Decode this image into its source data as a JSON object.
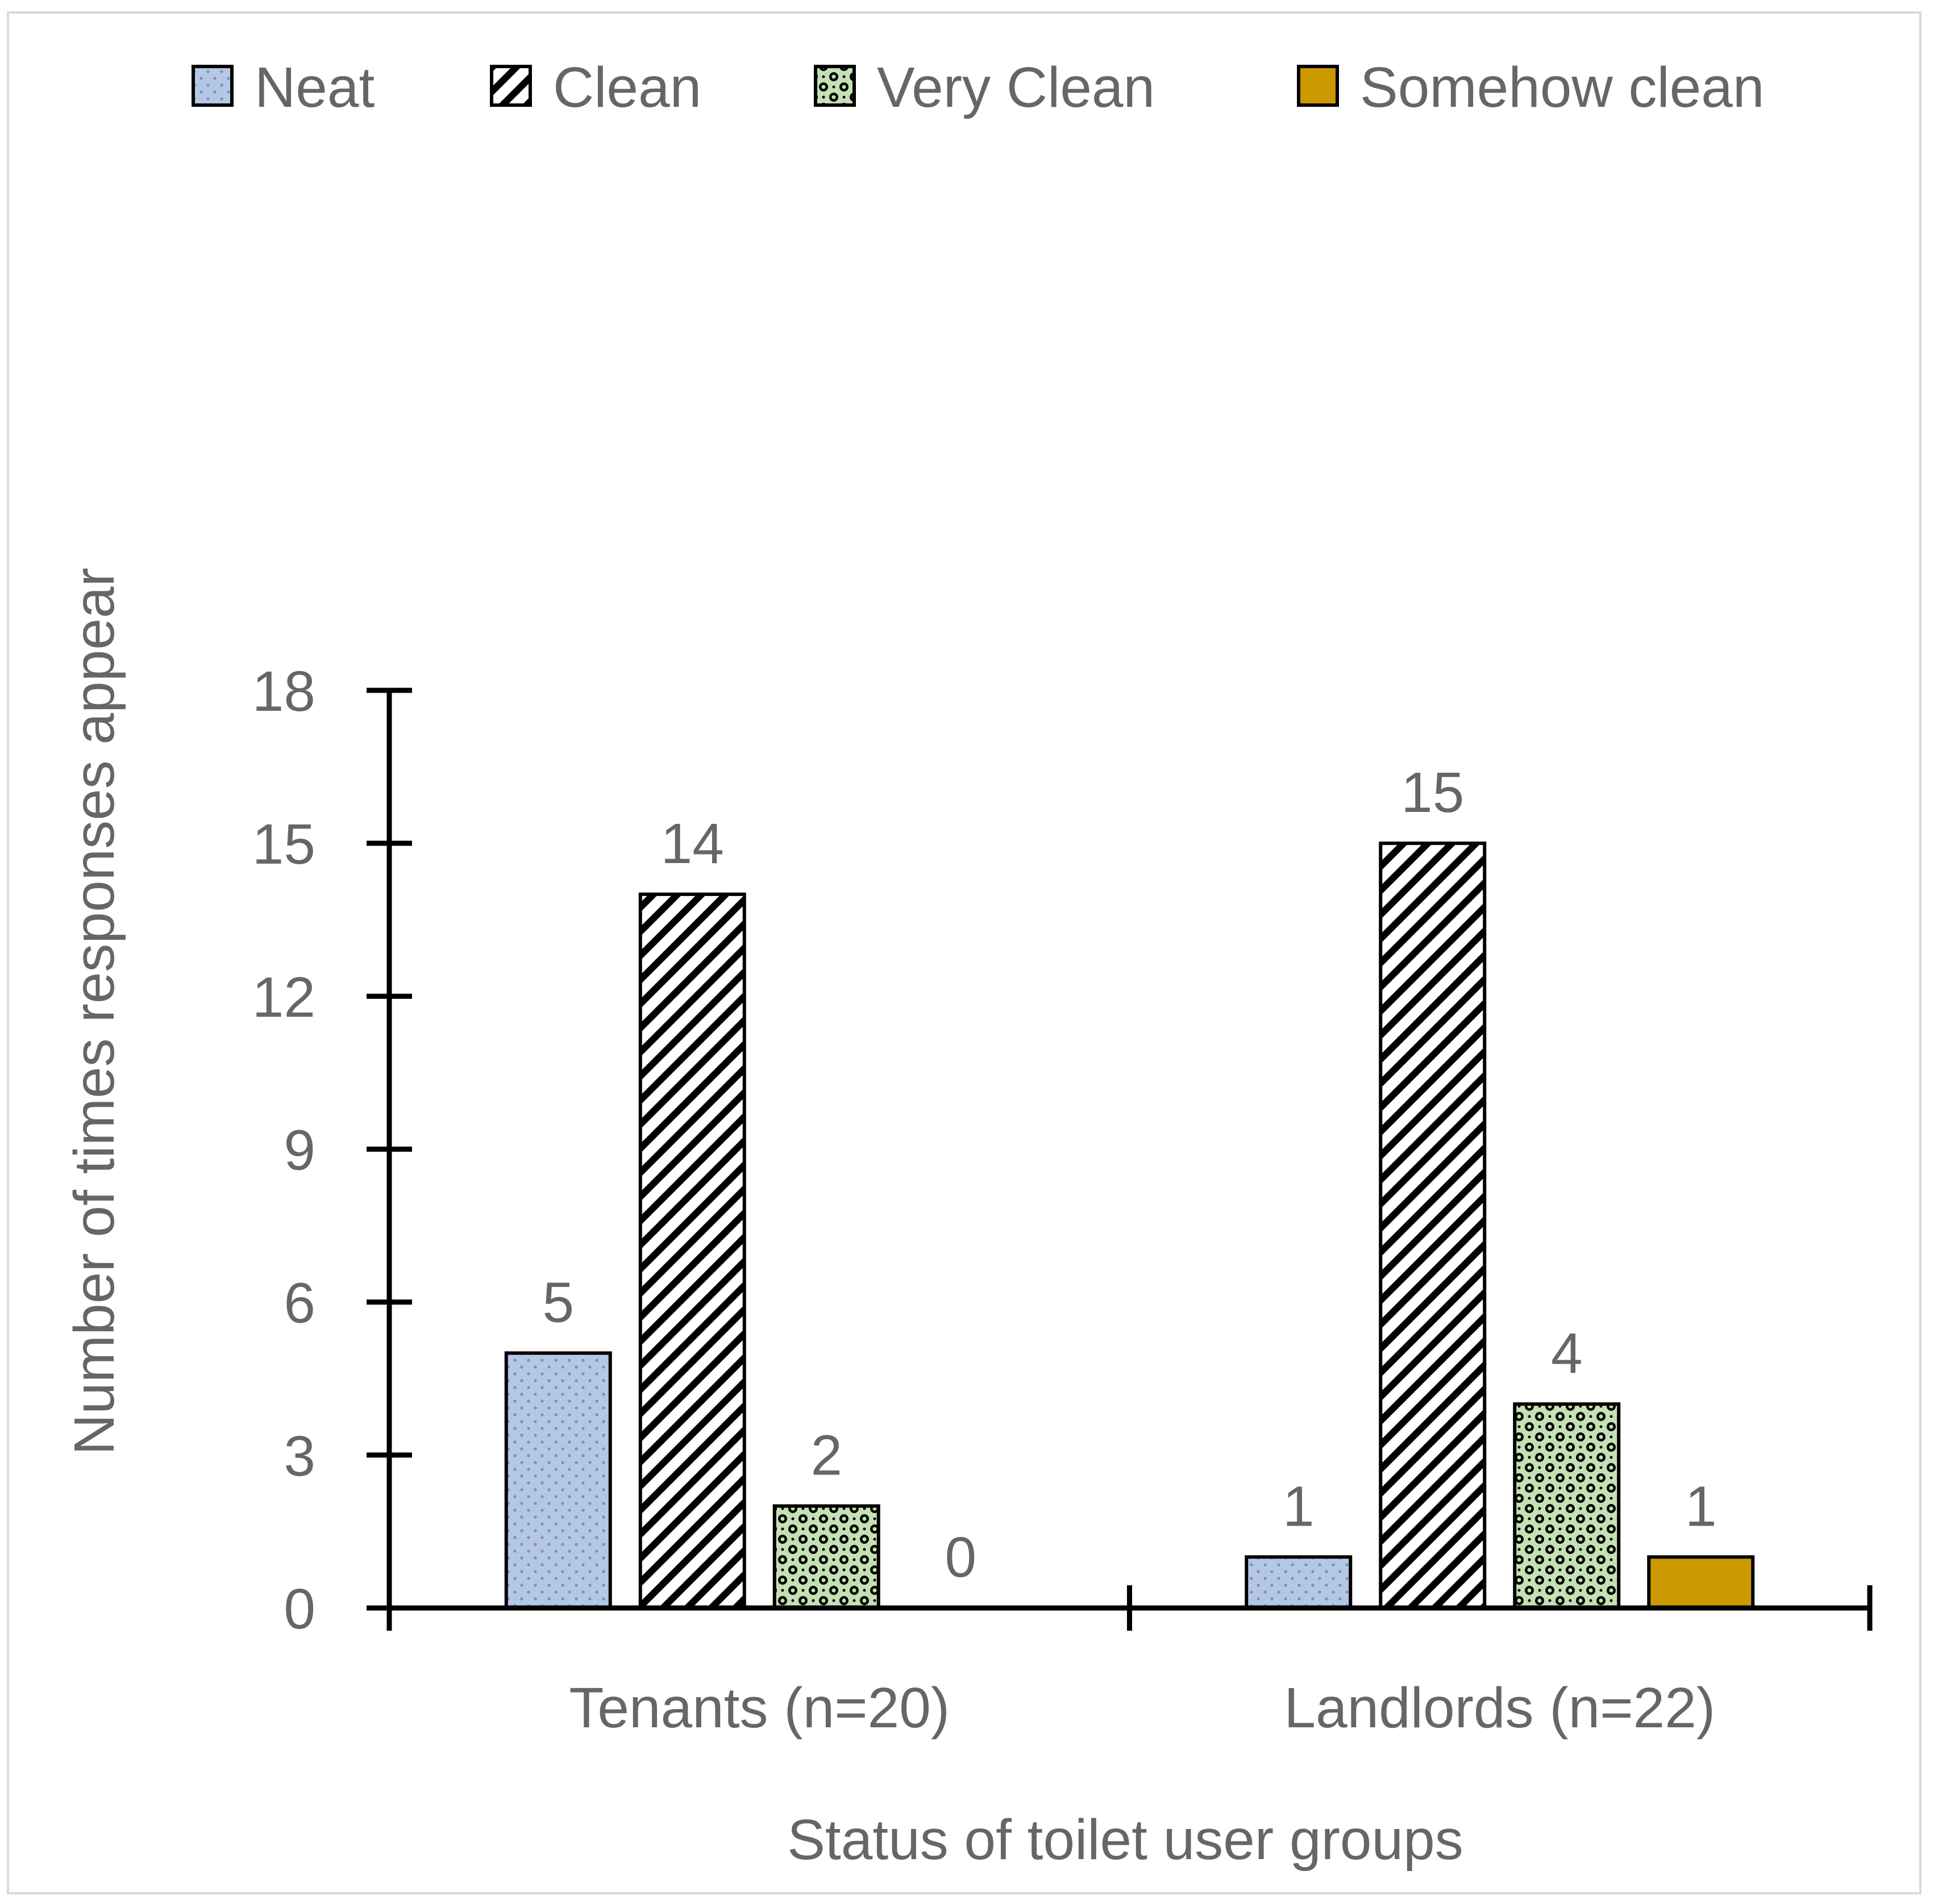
{
  "chart_data": {
    "type": "bar",
    "title": "",
    "xlabel": "Status of toilet user groups",
    "ylabel": "Number of times responses appear",
    "categories": [
      "Tenants (n=20)",
      "Landlords (n=22)"
    ],
    "ylim": [
      0,
      18
    ],
    "yticks": [
      "0",
      "3",
      "6",
      "9",
      "12",
      "15",
      "18"
    ],
    "grid": false,
    "legend_position": "top",
    "series": [
      {
        "name": "Neat",
        "values": [
          5,
          1
        ],
        "labels": [
          "5",
          "1"
        ],
        "fill": "#b4c7e7",
        "pattern": "dots"
      },
      {
        "name": "Clean",
        "values": [
          14,
          15
        ],
        "labels": [
          "14",
          "15"
        ],
        "fill": "#ffffff",
        "pattern": "diagonal-stripes"
      },
      {
        "name": "Very Clean",
        "values": [
          2,
          4
        ],
        "labels": [
          "2",
          "4"
        ],
        "fill": "#c5e0b4",
        "pattern": "circles"
      },
      {
        "name": "Somehow clean",
        "values": [
          0,
          1
        ],
        "labels": [
          "0",
          "1"
        ],
        "fill": "#cc9900",
        "pattern": "solid"
      }
    ]
  }
}
